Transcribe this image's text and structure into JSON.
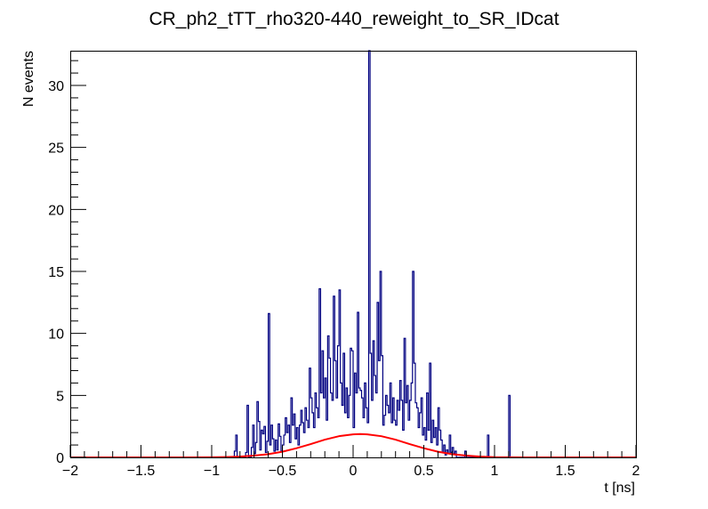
{
  "chart_data": {
    "type": "histogram",
    "title": "CR_ph2_tTT_rho320-440_reweight_to_SR_IDcat",
    "xlabel": "t [ns]",
    "ylabel": "N events",
    "xlim": [
      -2,
      2
    ],
    "ylim": [
      0,
      32.8
    ],
    "x_ticks": [
      -2,
      -1.5,
      -1,
      -0.5,
      0,
      0.5,
      1,
      1.5,
      2
    ],
    "x_tick_labels": [
      "−2",
      "−1.5",
      "−1",
      "−0.5",
      "0",
      "0.5",
      "1",
      "1.5",
      "2"
    ],
    "y_ticks": [
      0,
      5,
      10,
      15,
      20,
      25,
      30
    ],
    "y_tick_labels": [
      "0",
      "5",
      "10",
      "15",
      "20",
      "25",
      "30"
    ],
    "grid": false,
    "bin_width": 0.01,
    "series": [
      {
        "style": "step",
        "color": "#000080",
        "bins": [
          [
            -0.84,
            0.5
          ],
          [
            -0.83,
            1.8
          ],
          [
            -0.76,
            0.4
          ],
          [
            -0.75,
            4.2
          ],
          [
            -0.72,
            0.8
          ],
          [
            -0.71,
            2.6
          ],
          [
            -0.7,
            0.3
          ],
          [
            -0.69,
            1.2
          ],
          [
            -0.68,
            4.5
          ],
          [
            -0.67,
            2.9
          ],
          [
            -0.66,
            0.6
          ],
          [
            -0.65,
            2.2
          ],
          [
            -0.64,
            1.9
          ],
          [
            -0.63,
            2.5
          ],
          [
            -0.62,
            0.4
          ],
          [
            -0.61,
            1.3
          ],
          [
            -0.6,
            11.6
          ],
          [
            -0.59,
            1.0
          ],
          [
            -0.58,
            2.6
          ],
          [
            -0.57,
            1.5
          ],
          [
            -0.56,
            0.5
          ],
          [
            -0.55,
            1.4
          ],
          [
            -0.54,
            0.6
          ],
          [
            -0.53,
            2.7
          ],
          [
            -0.52,
            1.7
          ],
          [
            -0.51,
            0.5
          ],
          [
            -0.5,
            1.0
          ],
          [
            -0.49,
            1.8
          ],
          [
            -0.48,
            3.2
          ],
          [
            -0.47,
            2.0
          ],
          [
            -0.46,
            2.6
          ],
          [
            -0.45,
            1.2
          ],
          [
            -0.44,
            4.8
          ],
          [
            -0.43,
            2.6
          ],
          [
            -0.42,
            3.5
          ],
          [
            -0.41,
            1.5
          ],
          [
            -0.4,
            2.4
          ],
          [
            -0.39,
            1.0
          ],
          [
            -0.38,
            2.6
          ],
          [
            -0.37,
            3.8
          ],
          [
            -0.36,
            2.8
          ],
          [
            -0.35,
            2.0
          ],
          [
            -0.34,
            4.0
          ],
          [
            -0.33,
            3.0
          ],
          [
            -0.32,
            2.4
          ],
          [
            -0.31,
            7.2
          ],
          [
            -0.3,
            4.8
          ],
          [
            -0.29,
            3.6
          ],
          [
            -0.28,
            2.4
          ],
          [
            -0.27,
            5.2
          ],
          [
            -0.26,
            4.0
          ],
          [
            -0.25,
            3.2
          ],
          [
            -0.24,
            13.6
          ],
          [
            -0.23,
            5.2
          ],
          [
            -0.22,
            8.6
          ],
          [
            -0.21,
            4.8
          ],
          [
            -0.2,
            6.4
          ],
          [
            -0.19,
            3.0
          ],
          [
            -0.18,
            9.8
          ],
          [
            -0.17,
            8.0
          ],
          [
            -0.16,
            5.2
          ],
          [
            -0.15,
            4.6
          ],
          [
            -0.14,
            13.0
          ],
          [
            -0.13,
            7.8
          ],
          [
            -0.12,
            4.8
          ],
          [
            -0.11,
            9.0
          ],
          [
            -0.1,
            13.5
          ],
          [
            -0.09,
            6.0
          ],
          [
            -0.08,
            4.2
          ],
          [
            -0.07,
            8.4
          ],
          [
            -0.06,
            3.6
          ],
          [
            -0.05,
            5.6
          ],
          [
            -0.04,
            3.2
          ],
          [
            -0.03,
            5.0
          ],
          [
            -0.02,
            8.8
          ],
          [
            -0.01,
            8.6
          ],
          [
            0.0,
            2.4
          ],
          [
            0.01,
            6.8
          ],
          [
            0.02,
            5.2
          ],
          [
            0.03,
            11.7
          ],
          [
            0.04,
            5.6
          ],
          [
            0.05,
            5.4
          ],
          [
            0.06,
            4.8
          ],
          [
            0.07,
            3.2
          ],
          [
            0.08,
            6.0
          ],
          [
            0.09,
            4.0
          ],
          [
            0.1,
            2.8
          ],
          [
            0.11,
            32.8
          ],
          [
            0.12,
            8.4
          ],
          [
            0.13,
            4.6
          ],
          [
            0.14,
            9.4
          ],
          [
            0.15,
            6.6
          ],
          [
            0.16,
            5.2
          ],
          [
            0.17,
            12.5
          ],
          [
            0.18,
            7.8
          ],
          [
            0.19,
            15.0
          ],
          [
            0.2,
            8.2
          ],
          [
            0.21,
            2.6
          ],
          [
            0.22,
            3.4
          ],
          [
            0.23,
            5.0
          ],
          [
            0.24,
            4.2
          ],
          [
            0.25,
            3.6
          ],
          [
            0.26,
            6.0
          ],
          [
            0.27,
            2.8
          ],
          [
            0.28,
            4.8
          ],
          [
            0.29,
            3.0
          ],
          [
            0.3,
            2.6
          ],
          [
            0.31,
            4.6
          ],
          [
            0.32,
            3.8
          ],
          [
            0.33,
            6.2
          ],
          [
            0.34,
            4.6
          ],
          [
            0.35,
            2.2
          ],
          [
            0.36,
            9.6
          ],
          [
            0.37,
            4.4
          ],
          [
            0.38,
            5.8
          ],
          [
            0.39,
            3.0
          ],
          [
            0.4,
            4.6
          ],
          [
            0.41,
            6.0
          ],
          [
            0.42,
            15.0
          ],
          [
            0.43,
            7.6
          ],
          [
            0.44,
            4.4
          ],
          [
            0.45,
            4.0
          ],
          [
            0.46,
            2.4
          ],
          [
            0.47,
            3.6
          ],
          [
            0.48,
            4.8
          ],
          [
            0.49,
            1.8
          ],
          [
            0.5,
            2.4
          ],
          [
            0.51,
            1.4
          ],
          [
            0.52,
            5.2
          ],
          [
            0.53,
            2.2
          ],
          [
            0.54,
            7.6
          ],
          [
            0.55,
            1.2
          ],
          [
            0.56,
            3.0
          ],
          [
            0.57,
            1.6
          ],
          [
            0.58,
            2.4
          ],
          [
            0.59,
            1.0
          ],
          [
            0.6,
            4.0
          ],
          [
            0.61,
            2.2
          ],
          [
            0.62,
            1.4
          ],
          [
            0.63,
            0.4
          ],
          [
            0.64,
            1.0
          ],
          [
            0.65,
            0.2
          ],
          [
            0.66,
            0.6
          ],
          [
            0.67,
            0.3
          ],
          [
            0.68,
            1.8
          ],
          [
            0.69,
            0.4
          ],
          [
            0.7,
            0.8
          ],
          [
            0.71,
            0.3
          ],
          [
            0.72,
            0.5
          ],
          [
            0.79,
            0.5
          ],
          [
            0.95,
            1.8
          ],
          [
            1.1,
            5.0
          ]
        ]
      },
      {
        "style": "line",
        "color": "#ff0000",
        "x": [
          -2.0,
          -1.2,
          -1.0,
          -0.9,
          -0.8,
          -0.7,
          -0.6,
          -0.5,
          -0.4,
          -0.3,
          -0.2,
          -0.1,
          0.0,
          0.05,
          0.1,
          0.2,
          0.3,
          0.4,
          0.5,
          0.6,
          0.7,
          0.8,
          0.9,
          1.0,
          1.2,
          2.0
        ],
        "y": [
          0.0,
          0.0,
          0.01,
          0.03,
          0.06,
          0.14,
          0.26,
          0.46,
          0.74,
          1.07,
          1.43,
          1.71,
          1.86,
          1.88,
          1.86,
          1.71,
          1.43,
          1.07,
          0.74,
          0.46,
          0.26,
          0.14,
          0.06,
          0.02,
          0.0,
          0.0
        ]
      }
    ]
  }
}
